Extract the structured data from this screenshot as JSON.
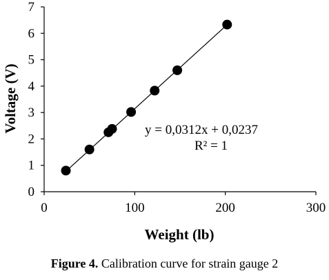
{
  "chart_data": {
    "type": "scatter",
    "xlabel": "Weight (lb)",
    "ylabel": "Voltage (V)",
    "xlim": [
      0,
      300
    ],
    "ylim": [
      0,
      7
    ],
    "xticks": [
      "0",
      "100",
      "200",
      "300"
    ],
    "yticks": [
      "0",
      "1",
      "2",
      "3",
      "4",
      "5",
      "6",
      "7"
    ],
    "grid": false,
    "legend": "none",
    "series": [
      {
        "points": [
          {
            "x": 24,
            "y": 0.8
          },
          {
            "x": 50,
            "y": 1.6
          },
          {
            "x": 71,
            "y": 2.25
          },
          {
            "x": 75,
            "y": 2.38
          },
          {
            "x": 96,
            "y": 3.02
          },
          {
            "x": 122,
            "y": 3.83
          },
          {
            "x": 147,
            "y": 4.6
          },
          {
            "x": 202,
            "y": 6.33
          }
        ],
        "color": "#000000"
      }
    ],
    "trendline": {
      "slope": 0.0312,
      "intercept": 0.0237,
      "x_range": [
        24,
        202
      ],
      "equation": "y = 0,0312x + 0,0237",
      "r_squared": "R² = 1"
    }
  },
  "caption": {
    "label": "Figure 4.",
    "text": " Calibration curve for strain gauge 2"
  }
}
